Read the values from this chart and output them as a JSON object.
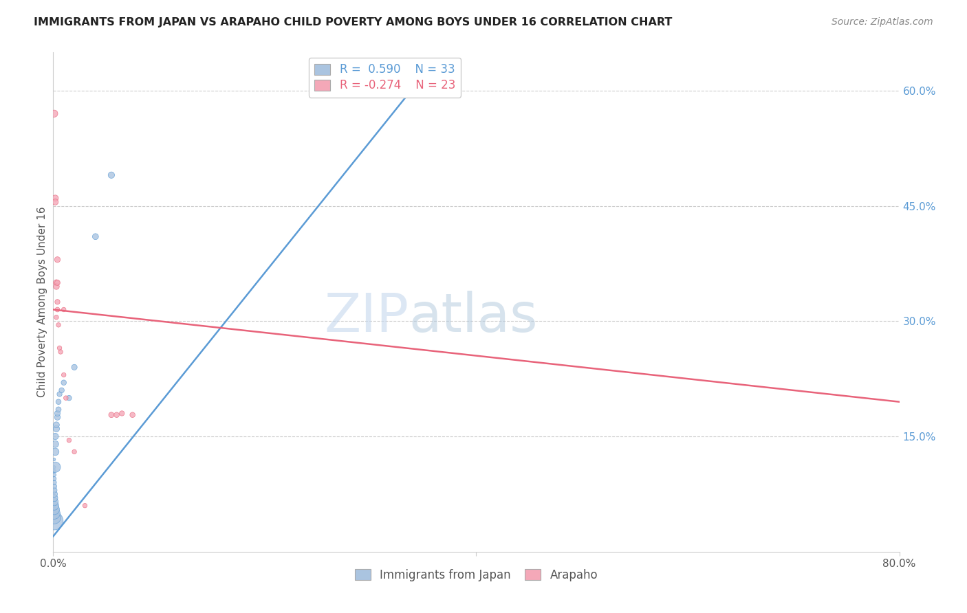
{
  "title": "IMMIGRANTS FROM JAPAN VS ARAPAHO CHILD POVERTY AMONG BOYS UNDER 16 CORRELATION CHART",
  "source": "Source: ZipAtlas.com",
  "ylabel": "Child Poverty Among Boys Under 16",
  "xlim": [
    0,
    0.8
  ],
  "ylim": [
    0,
    0.65
  ],
  "y_ticks_right": [
    0.15,
    0.3,
    0.45,
    0.6
  ],
  "y_tick_labels_right": [
    "15.0%",
    "30.0%",
    "45.0%",
    "60.0%"
  ],
  "legend_R_N": [
    {
      "R": "0.590",
      "N": "33"
    },
    {
      "R": "-0.274",
      "N": "23"
    }
  ],
  "blue_scatter": [
    [
      0.001,
      0.04
    ],
    [
      0.001,
      0.045
    ],
    [
      0.001,
      0.05
    ],
    [
      0.001,
      0.055
    ],
    [
      0.001,
      0.06
    ],
    [
      0.001,
      0.065
    ],
    [
      0.001,
      0.07
    ],
    [
      0.001,
      0.075
    ],
    [
      0.001,
      0.08
    ],
    [
      0.001,
      0.085
    ],
    [
      0.001,
      0.09
    ],
    [
      0.001,
      0.095
    ],
    [
      0.001,
      0.1
    ],
    [
      0.001,
      0.105
    ],
    [
      0.001,
      0.11
    ],
    [
      0.001,
      0.12
    ],
    [
      0.002,
      0.11
    ],
    [
      0.002,
      0.13
    ],
    [
      0.002,
      0.14
    ],
    [
      0.002,
      0.15
    ],
    [
      0.003,
      0.16
    ],
    [
      0.003,
      0.165
    ],
    [
      0.004,
      0.175
    ],
    [
      0.004,
      0.18
    ],
    [
      0.005,
      0.185
    ],
    [
      0.005,
      0.195
    ],
    [
      0.006,
      0.205
    ],
    [
      0.008,
      0.21
    ],
    [
      0.01,
      0.22
    ],
    [
      0.015,
      0.2
    ],
    [
      0.02,
      0.24
    ],
    [
      0.04,
      0.41
    ],
    [
      0.055,
      0.49
    ]
  ],
  "blue_sizes": [
    350,
    200,
    150,
    120,
    90,
    70,
    55,
    45,
    35,
    28,
    22,
    18,
    15,
    12,
    10,
    8,
    120,
    60,
    50,
    45,
    45,
    40,
    38,
    35,
    32,
    30,
    28,
    30,
    30,
    30,
    35,
    40,
    45
  ],
  "pink_scatter": [
    [
      0.001,
      0.57
    ],
    [
      0.002,
      0.46
    ],
    [
      0.002,
      0.455
    ],
    [
      0.003,
      0.35
    ],
    [
      0.003,
      0.345
    ],
    [
      0.004,
      0.38
    ],
    [
      0.004,
      0.35
    ],
    [
      0.004,
      0.325
    ],
    [
      0.004,
      0.315
    ],
    [
      0.005,
      0.295
    ],
    [
      0.006,
      0.265
    ],
    [
      0.007,
      0.26
    ],
    [
      0.01,
      0.23
    ],
    [
      0.012,
      0.2
    ],
    [
      0.015,
      0.145
    ],
    [
      0.02,
      0.13
    ],
    [
      0.03,
      0.06
    ],
    [
      0.055,
      0.178
    ],
    [
      0.06,
      0.178
    ],
    [
      0.065,
      0.18
    ],
    [
      0.075,
      0.178
    ],
    [
      0.01,
      0.315
    ],
    [
      0.003,
      0.305
    ]
  ],
  "pink_sizes": [
    55,
    42,
    40,
    40,
    38,
    36,
    32,
    28,
    24,
    22,
    22,
    22,
    22,
    22,
    22,
    22,
    22,
    32,
    30,
    28,
    30,
    22,
    22
  ],
  "blue_line": {
    "x": [
      0.0,
      0.35
    ],
    "y": [
      0.02,
      0.62
    ]
  },
  "pink_line": {
    "x": [
      0.0,
      0.8
    ],
    "y": [
      0.315,
      0.195
    ]
  },
  "blue_color": "#5b9bd5",
  "pink_color": "#e8637a",
  "blue_fill": "#aac4e0",
  "pink_fill": "#f4a8b8",
  "watermark_zip": "ZIP",
  "watermark_atlas": "atlas",
  "background": "#ffffff",
  "grid_color": "#cccccc"
}
